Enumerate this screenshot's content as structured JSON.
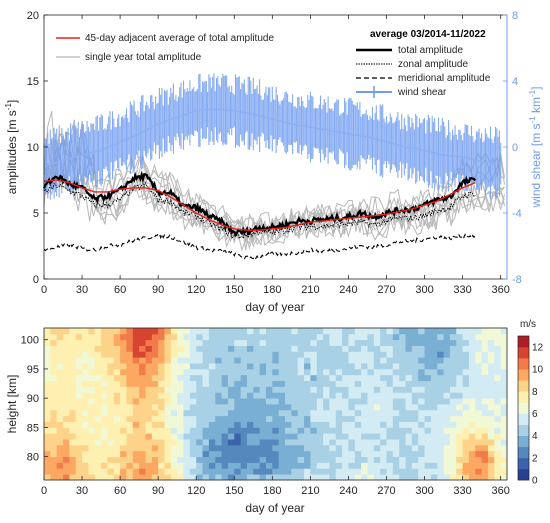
{
  "chart_data": [
    {
      "type": "line",
      "xlabel": "day of year",
      "ylabel": "amplitudes [m s^-1]",
      "ylabel_parts": [
        "amplitudes [m s",
        "-1",
        "]"
      ],
      "y2label": "wind shear [m s^-1 km^-1]",
      "y2label_parts": [
        "wind shear [m s",
        "-1",
        " km",
        "-1",
        "]"
      ],
      "xlim": [
        0,
        365
      ],
      "ylim": [
        0,
        20
      ],
      "y2lim": [
        -8,
        8
      ],
      "xticks": [
        "0",
        "30",
        "60",
        "90",
        "120",
        "150",
        "180",
        "210",
        "240",
        "270",
        "300",
        "330",
        "360"
      ],
      "yticks": [
        "0",
        "5",
        "10",
        "15",
        "20"
      ],
      "y2ticks": [
        "-8",
        "-4",
        "0",
        "4",
        "8"
      ],
      "legend_left": {
        "placement": "top-left",
        "entries": [
          "45-day adjacent average of total amplitude",
          "single year total amplitude"
        ]
      },
      "legend_right": {
        "placement": "top-right",
        "title": "average 03/2014-11/2022",
        "entries": [
          "total amplitude",
          "zonal amplitude",
          "meridional amplitude",
          "wind shear"
        ]
      },
      "colors": {
        "red": "#e8201e",
        "blue": "#6f9bf0",
        "gray": "#b8b8b8",
        "black": "#000000"
      },
      "series": [
        {
          "name": "total amplitude",
          "x": [
            0,
            10,
            20,
            30,
            40,
            50,
            60,
            70,
            80,
            90,
            100,
            110,
            120,
            130,
            140,
            150,
            160,
            170,
            180,
            190,
            200,
            210,
            220,
            230,
            240,
            250,
            260,
            270,
            280,
            290,
            300,
            310,
            320,
            330,
            340
          ],
          "y": [
            7.0,
            7.8,
            7.2,
            6.9,
            6.0,
            6.3,
            6.7,
            7.6,
            7.8,
            6.6,
            6.5,
            5.5,
            5.4,
            4.8,
            4.3,
            3.5,
            3.6,
            3.9,
            3.9,
            4.1,
            4.4,
            4.4,
            4.5,
            4.6,
            4.7,
            5.0,
            4.7,
            5.0,
            5.2,
            5.3,
            5.6,
            6.0,
            6.2,
            7.3,
            7.5
          ]
        },
        {
          "name": "zonal amplitude",
          "x": [
            0,
            10,
            20,
            30,
            40,
            50,
            60,
            70,
            80,
            90,
            100,
            110,
            120,
            130,
            140,
            150,
            160,
            170,
            180,
            190,
            200,
            210,
            220,
            230,
            240,
            250,
            260,
            270,
            280,
            290,
            300,
            310,
            320,
            330,
            340
          ],
          "y": [
            6.6,
            7.1,
            6.7,
            6.3,
            5.6,
            5.6,
            6.0,
            6.8,
            7.1,
            6.0,
            5.9,
            5.0,
            4.8,
            4.2,
            3.8,
            3.2,
            3.3,
            3.6,
            3.5,
            3.7,
            3.9,
            4.0,
            4.0,
            4.1,
            4.2,
            4.3,
            4.1,
            4.4,
            4.6,
            4.6,
            4.8,
            5.2,
            5.4,
            6.3,
            6.5
          ]
        },
        {
          "name": "meridional amplitude",
          "x": [
            0,
            10,
            20,
            30,
            40,
            50,
            60,
            70,
            80,
            90,
            100,
            110,
            120,
            130,
            140,
            150,
            160,
            170,
            180,
            190,
            200,
            210,
            220,
            230,
            240,
            250,
            260,
            270,
            280,
            290,
            300,
            310,
            320,
            330,
            340
          ],
          "y": [
            2.2,
            2.4,
            2.6,
            2.3,
            2.2,
            2.5,
            2.6,
            2.9,
            3.1,
            3.3,
            3.2,
            2.8,
            2.4,
            2.2,
            2.1,
            1.9,
            1.6,
            1.7,
            1.9,
            1.9,
            2.0,
            2.2,
            2.1,
            2.2,
            2.3,
            2.5,
            2.4,
            2.6,
            2.8,
            2.9,
            3.0,
            3.2,
            3.1,
            3.3,
            3.2
          ]
        },
        {
          "name": "45-day adjacent average of total amplitude",
          "x": [
            0,
            10,
            20,
            30,
            40,
            50,
            60,
            70,
            80,
            90,
            100,
            110,
            120,
            130,
            140,
            150,
            160,
            170,
            180,
            190,
            200,
            210,
            220,
            230,
            240,
            250,
            260,
            270,
            280,
            290,
            300,
            310,
            320,
            330,
            340
          ],
          "y": [
            7.4,
            7.5,
            7.3,
            6.9,
            6.6,
            6.6,
            6.8,
            6.9,
            6.9,
            6.7,
            6.2,
            5.6,
            5.0,
            4.5,
            4.1,
            3.8,
            3.7,
            3.7,
            3.8,
            3.9,
            4.1,
            4.3,
            4.4,
            4.5,
            4.6,
            4.7,
            4.8,
            4.9,
            5.1,
            5.3,
            5.6,
            5.9,
            6.4,
            6.9,
            7.3
          ]
        },
        {
          "name": "wind shear",
          "axis": "right",
          "x": [
            0,
            15,
            30,
            45,
            60,
            75,
            90,
            105,
            120,
            135,
            150,
            165,
            180,
            195,
            210,
            225,
            240,
            255,
            270,
            285,
            300,
            315,
            330,
            345,
            360
          ],
          "y": [
            -1.2,
            -0.8,
            -0.5,
            -0.2,
            0.3,
            0.8,
            1.4,
            1.8,
            2.2,
            2.3,
            2.2,
            2.0,
            1.7,
            1.4,
            1.2,
            1.0,
            0.8,
            0.6,
            0.3,
            0.0,
            -0.2,
            -0.5,
            -0.6,
            -0.9,
            -1.0
          ],
          "spread": 1.6
        }
      ]
    },
    {
      "type": "heatmap",
      "xlabel": "day of year",
      "ylabel": "height [km]",
      "colorbar_label": "m/s",
      "xlim": [
        0,
        365
      ],
      "ylim": [
        76,
        102
      ],
      "clim": [
        0,
        13
      ],
      "xticks": [
        "0",
        "30",
        "60",
        "90",
        "120",
        "150",
        "180",
        "210",
        "240",
        "270",
        "300",
        "330",
        "360"
      ],
      "yticks": [
        "80",
        "85",
        "90",
        "95",
        "100"
      ],
      "cticks": [
        "0",
        "2",
        "4",
        "6",
        "8",
        "10",
        "12"
      ],
      "colormap": [
        "#2a3f94",
        "#3b63ad",
        "#5588bd",
        "#7aafd4",
        "#a9d1e5",
        "#d3ebf3",
        "#f1f8d6",
        "#fdf0b0",
        "#fdd38a",
        "#fca862",
        "#f27b4a",
        "#d8442f",
        "#b01c27"
      ],
      "days": [
        0,
        15,
        30,
        45,
        60,
        75,
        90,
        105,
        120,
        135,
        150,
        165,
        180,
        195,
        210,
        225,
        240,
        255,
        270,
        285,
        300,
        315,
        330,
        345,
        360
      ],
      "heights": [
        76,
        78,
        80,
        82,
        84,
        86,
        88,
        90,
        92,
        94,
        96,
        98,
        100,
        102
      ],
      "values": [
        [
          8.5,
          10.0,
          8.0,
          7.6,
          8.8,
          9.6,
          9.0,
          7.0,
          4.8,
          3.8,
          3.6,
          3.9,
          4.2,
          4.8,
          5.4,
          5.5,
          5.6,
          5.9,
          5.8,
          4.7,
          5.2,
          5.7,
          8.6,
          9.3,
          7.0
        ],
        [
          8.7,
          10.1,
          8.2,
          7.5,
          8.6,
          9.5,
          8.9,
          6.8,
          4.4,
          3.1,
          2.6,
          2.9,
          3.2,
          4.0,
          4.6,
          5.0,
          5.3,
          5.6,
          5.5,
          4.6,
          5.1,
          5.5,
          8.8,
          10.6,
          7.0
        ],
        [
          8.6,
          9.8,
          8.0,
          7.4,
          8.4,
          9.2,
          8.8,
          6.6,
          4.2,
          2.8,
          2.0,
          2.6,
          2.9,
          3.8,
          4.2,
          4.6,
          5.0,
          5.4,
          5.3,
          4.5,
          5.1,
          5.4,
          8.3,
          10.4,
          6.8
        ],
        [
          8.2,
          9.4,
          7.8,
          7.1,
          8.1,
          9.0,
          8.6,
          6.5,
          4.2,
          2.9,
          2.1,
          2.7,
          3.0,
          4.0,
          4.3,
          4.7,
          5.0,
          5.3,
          5.2,
          4.6,
          5.2,
          5.4,
          7.8,
          9.2,
          6.5
        ],
        [
          7.8,
          8.9,
          7.5,
          6.9,
          7.8,
          8.8,
          8.3,
          6.2,
          4.3,
          3.3,
          2.6,
          3.0,
          3.3,
          4.1,
          4.4,
          4.8,
          5.1,
          5.3,
          5.3,
          4.8,
          5.3,
          5.3,
          7.1,
          8.0,
          6.2
        ],
        [
          7.4,
          8.4,
          7.3,
          6.8,
          7.6,
          8.6,
          8.1,
          6.1,
          4.5,
          3.7,
          3.1,
          3.4,
          3.6,
          4.2,
          4.5,
          4.9,
          5.2,
          5.4,
          5.4,
          4.9,
          5.2,
          5.2,
          6.4,
          6.8,
          6.0
        ],
        [
          7.1,
          8.0,
          7.1,
          6.8,
          7.5,
          8.6,
          8.0,
          6.0,
          4.7,
          4.0,
          3.6,
          3.8,
          3.9,
          4.3,
          4.6,
          5.0,
          5.3,
          5.5,
          5.5,
          5.0,
          5.0,
          5.1,
          5.9,
          6.2,
          5.8
        ],
        [
          6.9,
          7.7,
          7.0,
          6.9,
          7.7,
          8.8,
          8.2,
          6.1,
          4.8,
          4.2,
          4.0,
          4.0,
          4.1,
          4.4,
          4.6,
          4.9,
          5.2,
          5.5,
          5.4,
          5.1,
          4.8,
          4.9,
          5.6,
          5.9,
          5.7
        ],
        [
          6.8,
          7.5,
          7.0,
          7.1,
          8.0,
          9.2,
          8.5,
          6.2,
          4.9,
          4.3,
          4.2,
          4.2,
          4.2,
          4.4,
          4.6,
          4.8,
          5.0,
          5.4,
          5.3,
          5.0,
          4.6,
          4.7,
          5.4,
          5.8,
          5.7
        ],
        [
          6.9,
          7.5,
          7.1,
          7.3,
          8.4,
          9.8,
          9.0,
          6.4,
          5.0,
          4.4,
          4.3,
          4.3,
          4.2,
          4.4,
          4.5,
          4.7,
          4.9,
          5.2,
          5.1,
          4.8,
          4.3,
          4.2,
          5.2,
          5.8,
          5.8
        ],
        [
          7.0,
          7.6,
          7.2,
          7.5,
          8.8,
          10.5,
          9.6,
          6.6,
          5.1,
          4.5,
          4.4,
          4.4,
          4.3,
          4.5,
          4.5,
          4.7,
          4.8,
          5.0,
          4.9,
          4.6,
          3.9,
          3.6,
          5.1,
          5.9,
          6.0
        ],
        [
          7.2,
          7.8,
          7.4,
          7.7,
          9.2,
          11.2,
          10.2,
          6.8,
          5.2,
          4.6,
          4.4,
          4.5,
          4.4,
          4.6,
          4.6,
          4.7,
          4.8,
          4.9,
          4.8,
          4.4,
          3.6,
          3.2,
          5.0,
          6.0,
          6.2
        ],
        [
          7.4,
          8.0,
          7.6,
          7.9,
          9.5,
          11.8,
          10.6,
          7.0,
          5.3,
          4.7,
          4.5,
          4.6,
          4.6,
          4.7,
          4.7,
          4.8,
          4.9,
          4.9,
          4.7,
          4.3,
          3.5,
          3.4,
          5.0,
          6.1,
          6.3
        ],
        [
          7.5,
          8.1,
          7.7,
          8.0,
          9.6,
          12.0,
          10.8,
          7.1,
          5.4,
          4.8,
          4.6,
          4.7,
          4.7,
          4.8,
          4.8,
          4.9,
          5.0,
          5.0,
          4.8,
          4.4,
          3.7,
          3.8,
          5.1,
          6.2,
          6.4
        ]
      ]
    }
  ]
}
